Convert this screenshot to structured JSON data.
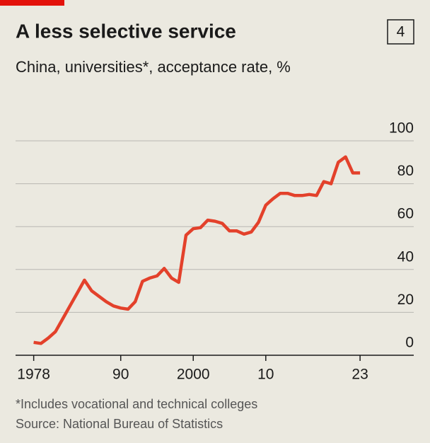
{
  "chart_data": {
    "type": "line",
    "title": "A less selective service",
    "badge": "4",
    "subtitle": "China, universities*, acceptance rate, %",
    "footnote": "*Includes vocational and technical colleges",
    "source": "Source: National Bureau of Statistics",
    "x": [
      1978,
      1979,
      1980,
      1981,
      1982,
      1983,
      1984,
      1985,
      1986,
      1987,
      1988,
      1989,
      1990,
      1991,
      1992,
      1993,
      1994,
      1995,
      1996,
      1997,
      1998,
      1999,
      2000,
      2001,
      2002,
      2003,
      2004,
      2005,
      2006,
      2007,
      2008,
      2009,
      2010,
      2011,
      2012,
      2013,
      2014,
      2015,
      2016,
      2017,
      2018,
      2019,
      2020,
      2021,
      2022,
      2023
    ],
    "series": [
      {
        "name": "Acceptance rate",
        "color": "#e3412b",
        "values": [
          6,
          5.5,
          8,
          11,
          17,
          23,
          29,
          35,
          30,
          27.5,
          25,
          23,
          22,
          21.5,
          25,
          34.5,
          36,
          37,
          40.5,
          36,
          34,
          56,
          59,
          59.5,
          63,
          62.5,
          61.5,
          58,
          58,
          56.5,
          57.5,
          62,
          70,
          73,
          75.5,
          75.5,
          74.5,
          74.5,
          75,
          74.5,
          81,
          80,
          90,
          92.5,
          85,
          85
        ]
      }
    ],
    "xlim": [
      1975.5,
      2030.4
    ],
    "xticks": [
      {
        "value": 1978,
        "label": "1978"
      },
      {
        "value": 1990,
        "label": "90"
      },
      {
        "value": 2000,
        "label": "2000"
      },
      {
        "value": 2010,
        "label": "10"
      },
      {
        "value": 2023,
        "label": "23"
      }
    ],
    "ylim": [
      0,
      100
    ],
    "yticks": [
      0,
      20,
      40,
      60,
      80,
      100
    ],
    "grid": true
  }
}
